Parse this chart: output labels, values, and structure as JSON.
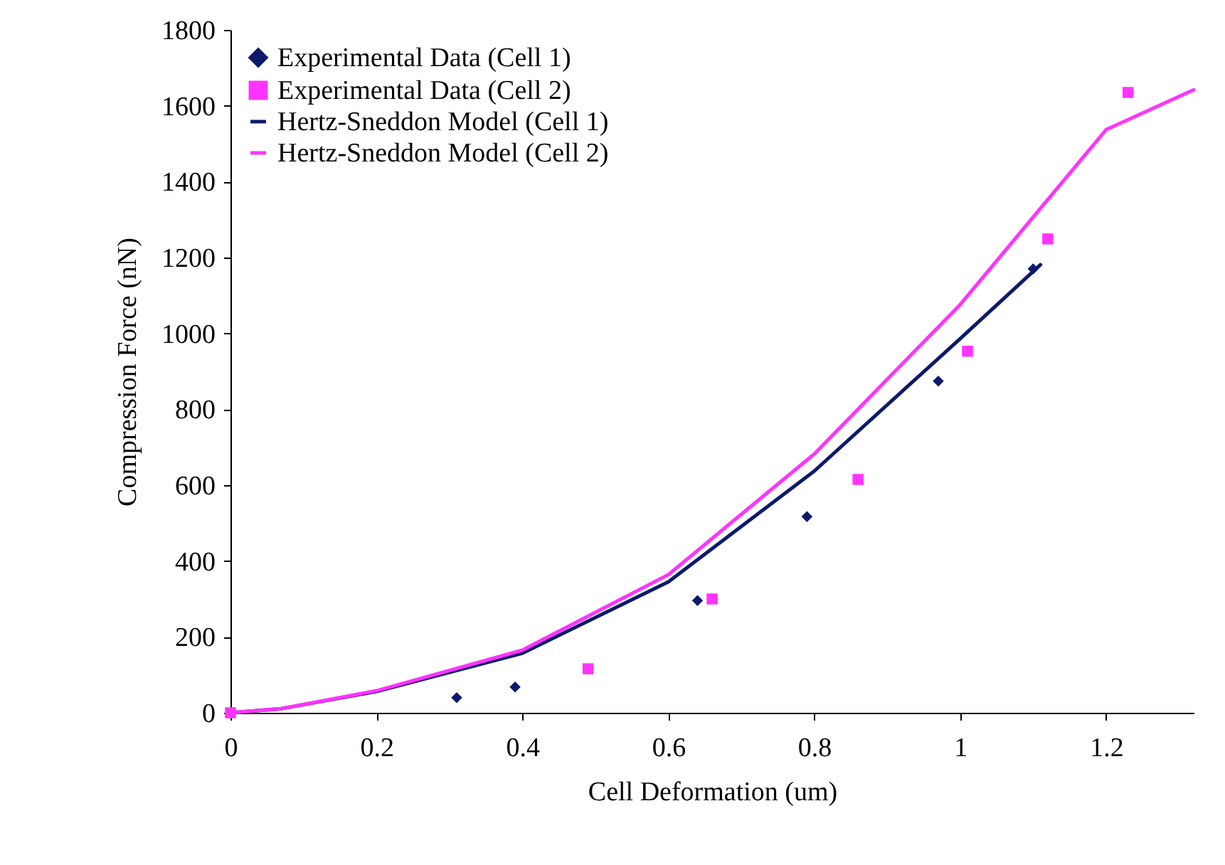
{
  "chart_data": {
    "type": "scatter",
    "xlabel": "Cell Deformation (um)",
    "ylabel": "Compression Force (nN)",
    "xlim": [
      0,
      1.32
    ],
    "xticks": [
      0,
      0.2,
      0.4,
      0.6,
      0.8,
      1,
      1.2
    ],
    "ylim": [
      0,
      1800
    ],
    "yticks": [
      0,
      200,
      400,
      600,
      800,
      1000,
      1200,
      1400,
      1600,
      1800
    ],
    "grid": false,
    "legend": "top left",
    "series": [
      {
        "name": "Experimental Data (Cell 1)",
        "marker": "diamond",
        "color": "#0d1a6b",
        "x": [
          0.31,
          0.39,
          0.64,
          0.79,
          0.97,
          1.1
        ],
        "values": [
          40,
          68,
          296,
          517,
          874,
          1170
        ]
      },
      {
        "name": "Experimental Data (Cell 2)",
        "marker": "square",
        "color": "#ff33ff",
        "x": [
          0,
          0.49,
          0.66,
          0.86,
          1.01,
          1.12,
          1.23
        ],
        "values": [
          0,
          116,
          300,
          615,
          953,
          1249,
          1635
        ]
      },
      {
        "name": "Hertz-Sneddon Model (Cell 1)",
        "type": "line",
        "marker": "none",
        "color": "#0d1a6b",
        "x": [
          0,
          0.07,
          0.2,
          0.4,
          0.6,
          0.8,
          1.0,
          1.11
        ],
        "values": [
          0,
          11,
          56,
          157,
          345,
          637,
          986,
          1181
        ]
      },
      {
        "name": "Hertz-Sneddon Model (Cell 2)",
        "type": "line",
        "marker": "none",
        "color": "#ff33ff",
        "x": [
          0,
          0.07,
          0.2,
          0.4,
          0.6,
          0.8,
          1.0,
          1.2,
          1.32
        ],
        "values": [
          0,
          11,
          58,
          165,
          364,
          682,
          1076,
          1537,
          1642
        ]
      }
    ]
  }
}
